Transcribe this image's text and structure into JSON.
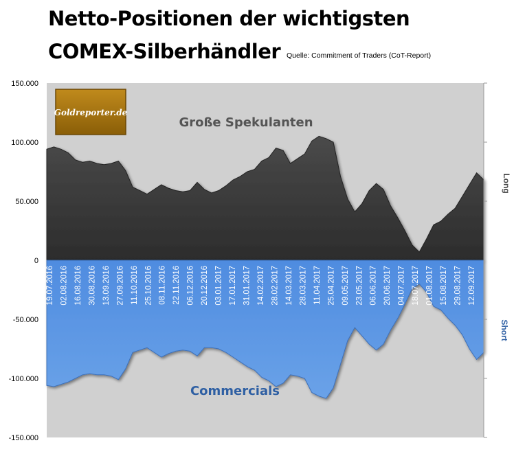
{
  "title_line1": "Netto-Positionen der wichtigsten",
  "title_line2": "COMEX-Silberhändler",
  "source": "Quelle: Commitment of Traders (CoT-Report)",
  "logo_text": "Goldreporter.de",
  "side_labels": {
    "long": "Long",
    "short": "Short"
  },
  "colors": {
    "plot_bg": "#d0d0d0",
    "spekulanten": "#3a3a3a",
    "commercials": "#5b97e0",
    "spekulanten_label": "#555555",
    "commercials_label": "#2e5fa3",
    "logo_bg": "#a7740d"
  },
  "chart_data": {
    "type": "area",
    "ylim": [
      -150000,
      150000
    ],
    "y_ticks": [
      "150.000",
      "100.000",
      "50.000",
      "0",
      "-50.000",
      "-100.000",
      "-150.000"
    ],
    "y_tick_values": [
      150000,
      100000,
      50000,
      0,
      -50000,
      -100000,
      -150000
    ],
    "x_tick_labels": [
      "19.07.2016",
      "02.08.2016",
      "16.08.2016",
      "30.08.2016",
      "13.09.2016",
      "27.09.2016",
      "11.10.2016",
      "25.10.2016",
      "08.11.2016",
      "22.11.2016",
      "06.12.2016",
      "20.12.2016",
      "03.01.2017",
      "17.01.2017",
      "31.01.2017",
      "14.02.2017",
      "28.02.2017",
      "14.03.2017",
      "28.03.2017",
      "11.04.2017",
      "25.04.2017",
      "09.05.2017",
      "23.05.2017",
      "06.06.2017",
      "20.06.2017",
      "04.07.2017",
      "18.07.2017",
      "01.08.2017",
      "15.08.2017",
      "29.08.2017",
      "12.09.2017"
    ],
    "series": [
      {
        "name": "Große Spekulanten",
        "values": [
          94000,
          96000,
          94000,
          91000,
          85000,
          83000,
          84000,
          82000,
          81000,
          82000,
          84000,
          76000,
          62000,
          59000,
          56000,
          60000,
          64000,
          61000,
          59000,
          58000,
          59000,
          66000,
          60000,
          57000,
          59000,
          63000,
          68000,
          71000,
          75000,
          77000,
          84000,
          87000,
          95000,
          93000,
          82000,
          86000,
          90000,
          101000,
          105000,
          103000,
          100000,
          71000,
          52000,
          41000,
          48000,
          59000,
          65000,
          60000,
          46000,
          36000,
          25000,
          13000,
          7000,
          18000,
          30000,
          33000,
          39000,
          44000,
          54000,
          64000,
          74000,
          68000
        ]
      },
      {
        "name": "Commercials",
        "values": [
          -106000,
          -107000,
          -105000,
          -103000,
          -100000,
          -97000,
          -96000,
          -97000,
          -97000,
          -98000,
          -101000,
          -92000,
          -78000,
          -76000,
          -74000,
          -78000,
          -82000,
          -79000,
          -77000,
          -76000,
          -77000,
          -81000,
          -74000,
          -74000,
          -75000,
          -78000,
          -82000,
          -86000,
          -90000,
          -93000,
          -99000,
          -102000,
          -107000,
          -104000,
          -97000,
          -98000,
          -100000,
          -112000,
          -115000,
          -117000,
          -108000,
          -88000,
          -68000,
          -57000,
          -64000,
          -71000,
          -76000,
          -71000,
          -59000,
          -49000,
          -37000,
          -24000,
          -20000,
          -27000,
          -39000,
          -42000,
          -49000,
          -55000,
          -63000,
          -75000,
          -84000,
          -78000
        ]
      }
    ]
  }
}
